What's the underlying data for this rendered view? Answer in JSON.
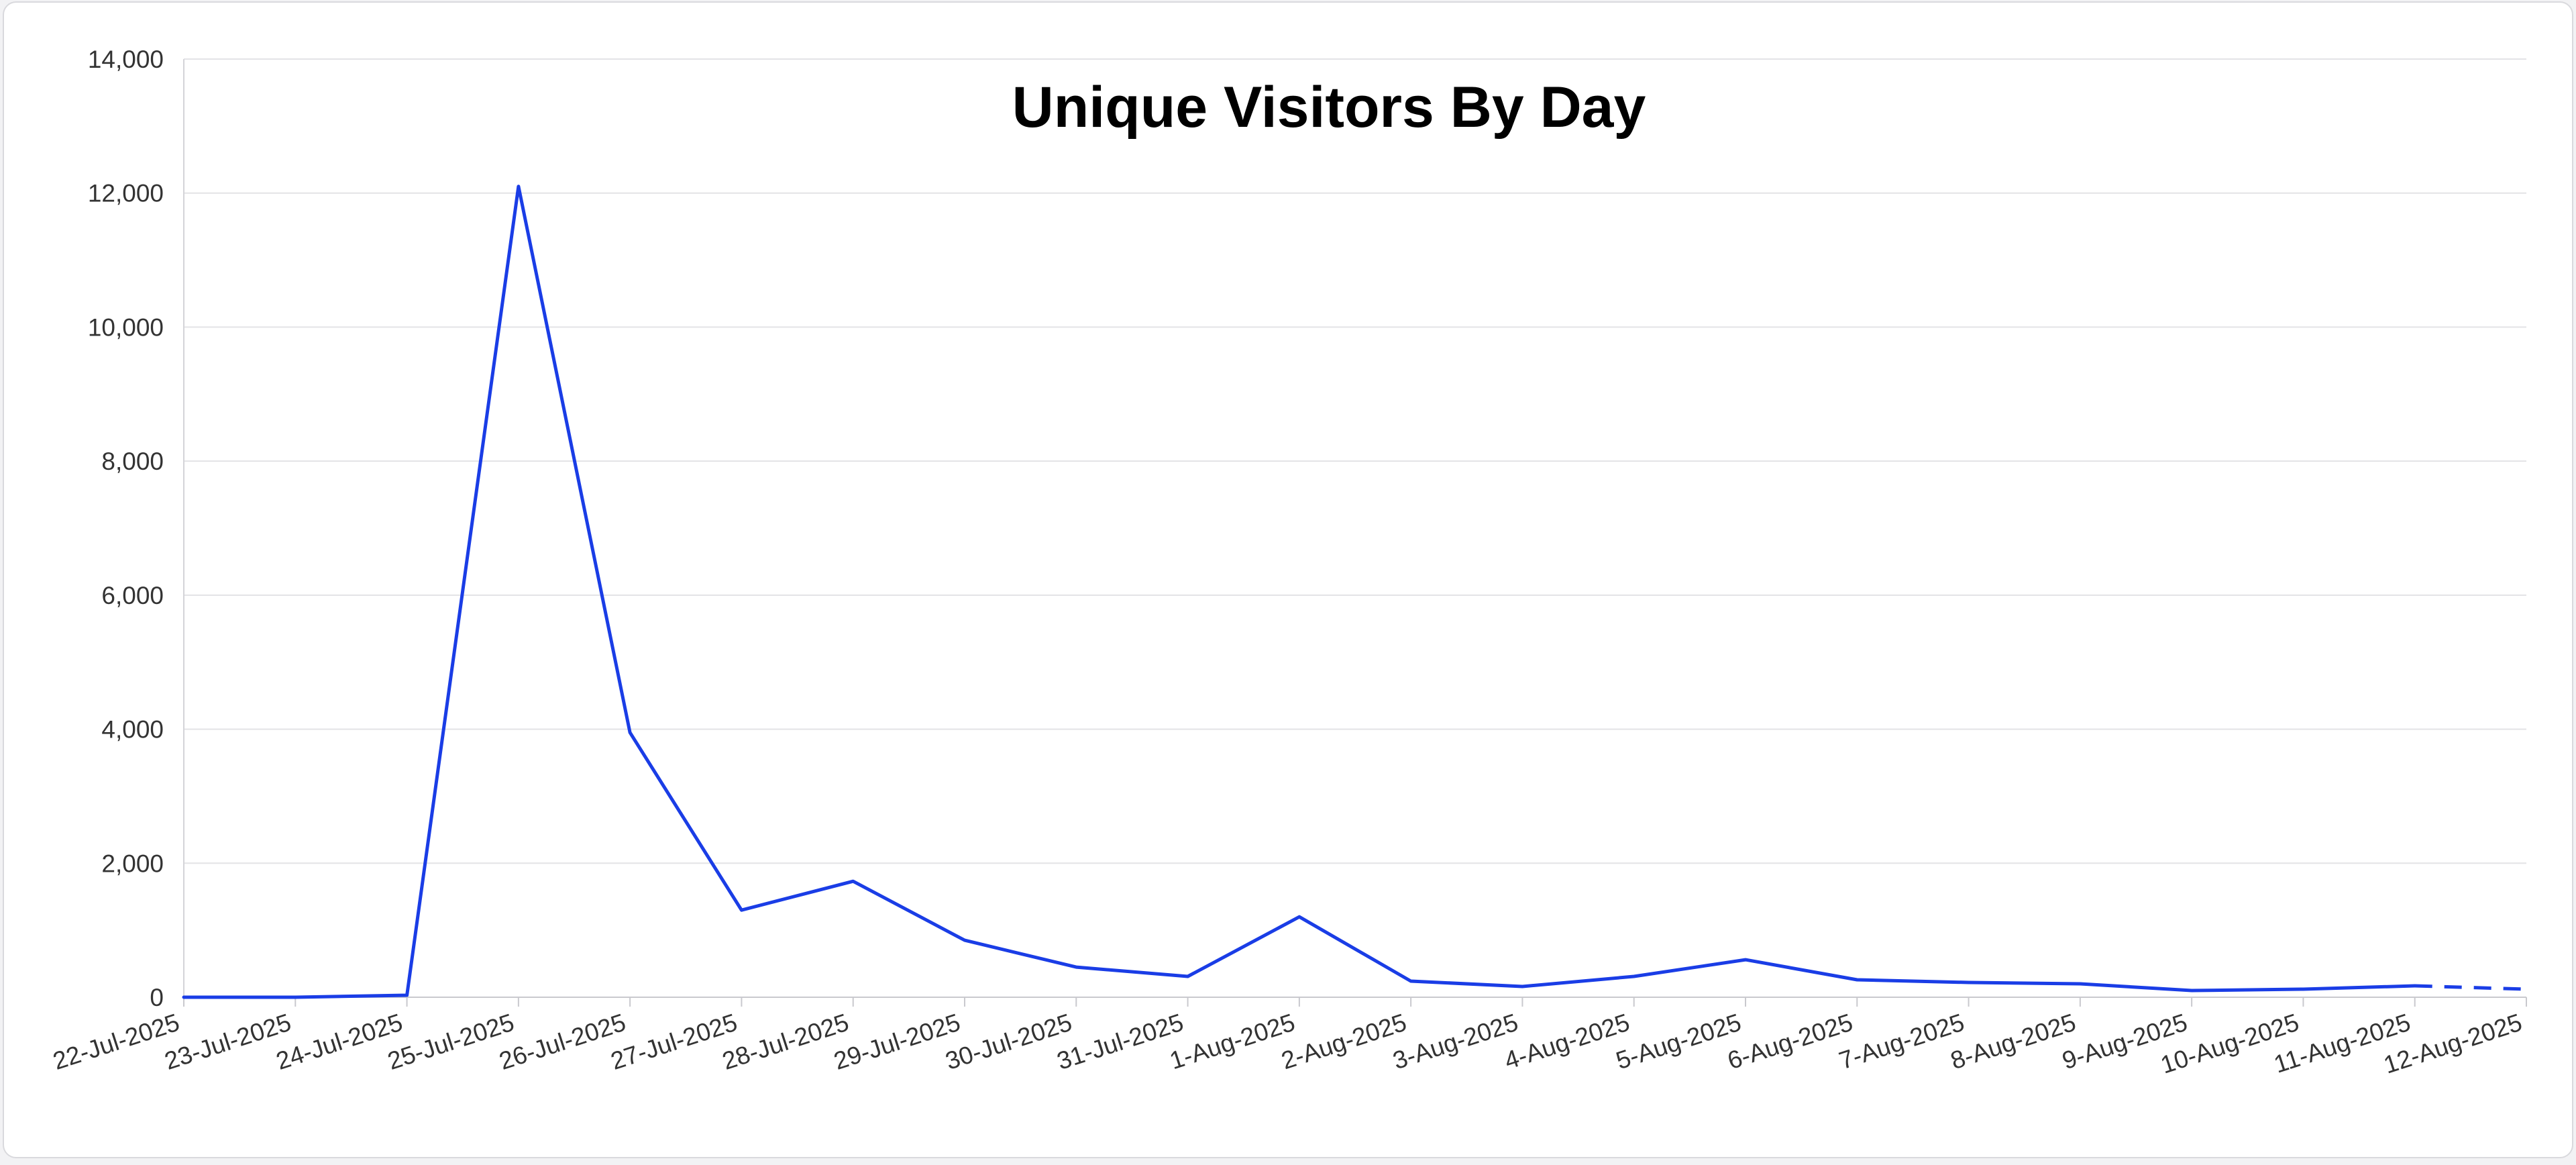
{
  "chart_data": {
    "type": "line",
    "title": "Unique Visitors By Day",
    "xlabel": "",
    "ylabel": "",
    "ylim": [
      0,
      14000
    ],
    "y_ticks": [
      "0",
      "2,000",
      "4,000",
      "6,000",
      "8,000",
      "10,000",
      "12,000",
      "14,000"
    ],
    "y_tick_values": [
      0,
      2000,
      4000,
      6000,
      8000,
      10000,
      12000,
      14000
    ],
    "grid": true,
    "legend": "none",
    "line_color": "#1a3de6",
    "categories": [
      "22-Jul-2025",
      "23-Jul-2025",
      "24-Jul-2025",
      "25-Jul-2025",
      "26-Jul-2025",
      "27-Jul-2025",
      "28-Jul-2025",
      "29-Jul-2025",
      "30-Jul-2025",
      "31-Jul-2025",
      "1-Aug-2025",
      "2-Aug-2025",
      "3-Aug-2025",
      "4-Aug-2025",
      "5-Aug-2025",
      "6-Aug-2025",
      "7-Aug-2025",
      "8-Aug-2025",
      "9-Aug-2025",
      "10-Aug-2025",
      "11-Aug-2025",
      "12-Aug-2025"
    ],
    "series": [
      {
        "values": [
          0,
          0,
          30,
          12100,
          3950,
          1300,
          1730,
          850,
          450,
          310,
          1200,
          240,
          160,
          310,
          560,
          260,
          220,
          200,
          100,
          120,
          170,
          120
        ],
        "dashed_last_segment": true
      }
    ]
  }
}
